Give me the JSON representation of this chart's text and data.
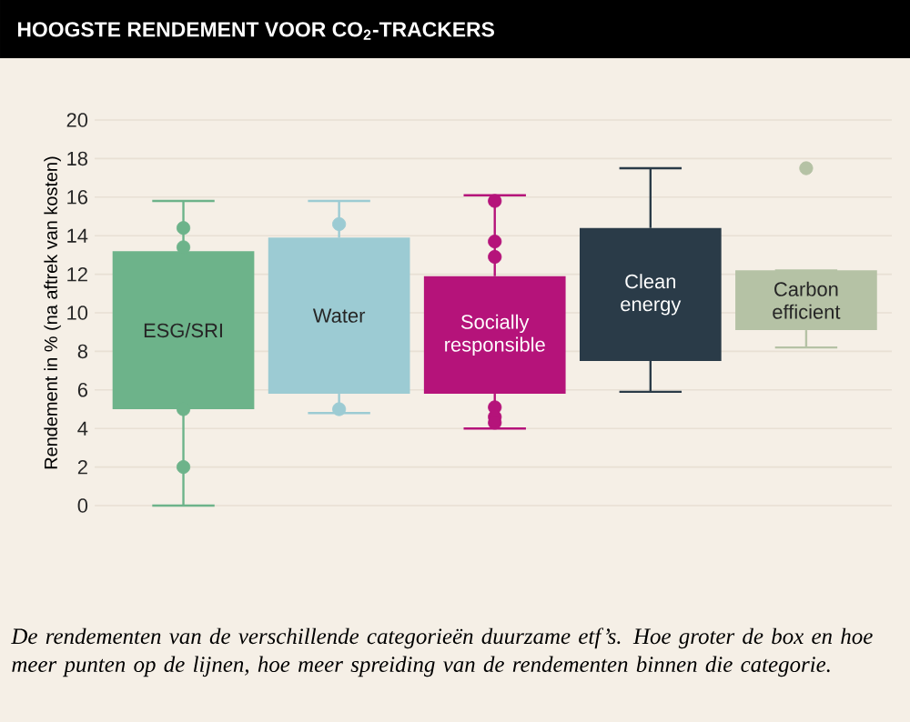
{
  "chart_data": {
    "type": "box",
    "title": "HOOGSTE RENDEMENT VOOR CO$_{2}$-TRACKERS",
    "ylabel": "Rendement in % (na aftrek van kosten)",
    "categories": [
      "ESG/SRI",
      "Water",
      "Socially responsible",
      "Clean energy",
      "Carbon efficient"
    ],
    "colors": [
      "#6db38a",
      "#9ccbd3",
      "#b5137a",
      "#2a3b48",
      "#b5c2a5"
    ],
    "boxes": [
      {
        "low": 0,
        "q1": 5.0,
        "q3": 13.2,
        "high": 15.8,
        "outliers": [
          14.4,
          13.4,
          5.0,
          2.0
        ]
      },
      {
        "low": 4.8,
        "q1": 5.8,
        "q3": 13.9,
        "high": 15.8,
        "outliers": [
          14.6,
          5.0
        ]
      },
      {
        "low": 4.0,
        "q1": 5.8,
        "q3": 11.9,
        "high": 16.1,
        "outliers": [
          15.8,
          13.7,
          12.9,
          5.1,
          4.6,
          4.3
        ]
      },
      {
        "low": 5.9,
        "q1": 7.5,
        "q3": 14.4,
        "high": 17.5
      },
      {
        "low": 8.2,
        "q1": 9.1,
        "q3": 12.2,
        "high": 12.2,
        "outliers": [
          17.5
        ]
      }
    ],
    "ylim": [
      0,
      20
    ],
    "yticks": [
      0,
      2,
      4,
      6,
      8,
      10,
      12,
      14,
      16,
      18,
      20
    ],
    "grid": "y",
    "tick_labels": "y",
    "annotations": [
      "De rendementen van de verschillende categorieën duurzame etf’s. Hoe groter de box en hoe meer punten op de lijnen, hoe meer spreiding van de rendementen binnen die categorie."
    ]
  }
}
